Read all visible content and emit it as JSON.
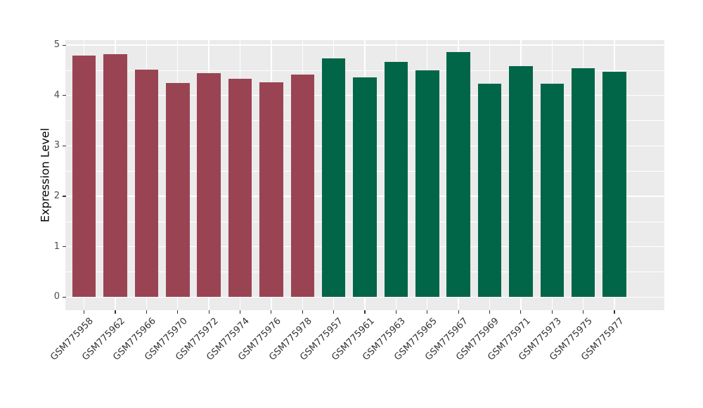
{
  "figure": {
    "background": "#FFFFFF",
    "panel_background": "#EBEBEB",
    "grid_color": "#FFFFFF",
    "tick_color": "#333333",
    "tick_label_color": "#4D4D4D"
  },
  "chart_data": {
    "type": "bar",
    "title": "",
    "xlabel": "",
    "ylabel": "Expression Level",
    "ylim": [
      0,
      5
    ],
    "yticks": [
      0,
      1,
      2,
      3,
      4,
      5
    ],
    "minor_yticks": [
      0.5,
      1.5,
      2.5,
      3.5,
      4.5
    ],
    "grid": true,
    "legend_position": "none",
    "categories": [
      "GSM775958",
      "GSM775962",
      "GSM775966",
      "GSM775970",
      "GSM775972",
      "GSM775974",
      "GSM775976",
      "GSM775978",
      "GSM775957",
      "GSM775961",
      "GSM775963",
      "GSM775965",
      "GSM775967",
      "GSM775969",
      "GSM775971",
      "GSM775973",
      "GSM775975",
      "GSM775977"
    ],
    "values": [
      4.79,
      4.82,
      4.51,
      4.25,
      4.45,
      4.33,
      4.26,
      4.42,
      4.74,
      4.36,
      4.67,
      4.5,
      4.86,
      4.23,
      4.58,
      4.24,
      4.54,
      4.47
    ],
    "colors": [
      "#9A4453",
      "#9A4453",
      "#9A4453",
      "#9A4453",
      "#9A4453",
      "#9A4453",
      "#9A4453",
      "#9A4453",
      "#006647",
      "#006647",
      "#006647",
      "#006647",
      "#006647",
      "#006647",
      "#006647",
      "#006647",
      "#006647",
      "#006647"
    ],
    "group_colors": {
      "left-group": "#9A4453",
      "right-group": "#006647"
    }
  }
}
